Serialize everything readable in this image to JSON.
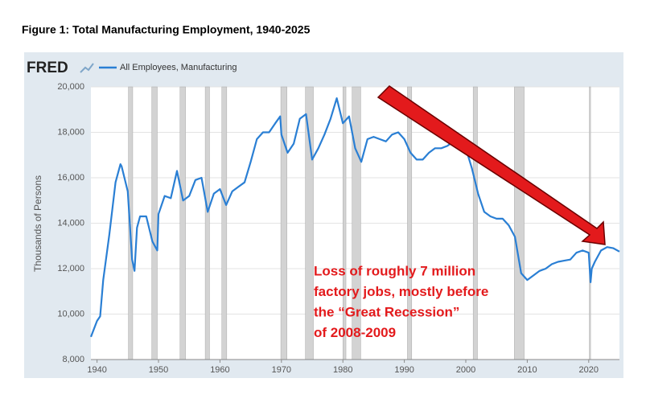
{
  "chart_data": {
    "type": "line",
    "title": "Figure 1: Total Manufacturing Employment, 1940-2025",
    "source": "FRED",
    "y_label": "Thousands of Persons",
    "annotation": [
      "Loss of roughly 7 million",
      "factory jobs, mostly before",
      "the “Great Recession”",
      "of 2008-2009"
    ],
    "x": [
      1939,
      1940,
      1940.5,
      1941,
      1942,
      1943,
      1943.8,
      1944,
      1945,
      1945.7,
      1946.1,
      1946.5,
      1947,
      1948,
      1949,
      1949.8,
      1950,
      1951,
      1952,
      1953,
      1954,
      1955,
      1956,
      1957,
      1958,
      1959,
      1960,
      1961,
      1962,
      1963,
      1964,
      1965,
      1966,
      1967,
      1968,
      1969,
      1969.8,
      1970,
      1971,
      1972,
      1973,
      1974,
      1975,
      1976,
      1977,
      1978,
      1979,
      1980,
      1981,
      1982,
      1983,
      1984,
      1985,
      1986,
      1987,
      1988,
      1989,
      1990,
      1991,
      1992,
      1993,
      1994,
      1995,
      1996,
      1997,
      1998,
      1999,
      2000,
      2001,
      2002,
      2003,
      2004,
      2005,
      2006,
      2007,
      2008,
      2009,
      2010,
      2011,
      2012,
      2013,
      2014,
      2015,
      2016,
      2017,
      2018,
      2019,
      2020,
      2020.3,
      2020.5,
      2021,
      2022,
      2023,
      2024,
      2025
    ],
    "series": [
      {
        "name": "All Employees, Manufacturing",
        "color": "#2a7fd4",
        "values": [
          9000,
          9700,
          9900,
          11500,
          13500,
          15800,
          16600,
          16500,
          15400,
          12400,
          11900,
          13800,
          14300,
          14300,
          13200,
          12800,
          14400,
          15200,
          15100,
          16300,
          15000,
          15200,
          15900,
          16000,
          14500,
          15300,
          15500,
          14800,
          15400,
          15600,
          15800,
          16700,
          17700,
          18000,
          18000,
          18400,
          18700,
          17900,
          17100,
          17500,
          18600,
          18800,
          16800,
          17300,
          17900,
          18600,
          19500,
          18400,
          18700,
          17300,
          16700,
          17700,
          17800,
          17700,
          17600,
          17900,
          18000,
          17700,
          17100,
          16800,
          16800,
          17100,
          17300,
          17300,
          17400,
          17600,
          17300,
          17300,
          16400,
          15300,
          14500,
          14300,
          14200,
          14200,
          13900,
          13400,
          11800,
          11500,
          11700,
          11900,
          12000,
          12200,
          12300,
          12350,
          12400,
          12700,
          12800,
          12700,
          11400,
          12000,
          12300,
          12800,
          12950,
          12900,
          12750
        ]
      }
    ],
    "recessions": [
      [
        1945.1,
        1945.8
      ],
      [
        1948.9,
        1949.8
      ],
      [
        1953.5,
        1954.4
      ],
      [
        1957.6,
        1958.3
      ],
      [
        1960.3,
        1961.1
      ],
      [
        1969.9,
        1970.9
      ],
      [
        1973.9,
        1975.2
      ],
      [
        1980.0,
        1980.5
      ],
      [
        1981.5,
        1982.9
      ],
      [
        1990.5,
        1991.2
      ],
      [
        2001.2,
        2001.9
      ],
      [
        2007.9,
        2009.5
      ],
      [
        2020.1,
        2020.3
      ]
    ],
    "xlim": [
      1939,
      2025
    ],
    "ylim": [
      8000,
      20000
    ],
    "xticks": [
      1940,
      1950,
      1960,
      1970,
      1980,
      1990,
      2000,
      2010,
      2020
    ],
    "yticks": [
      {
        "value": 8000,
        "label": "8,000"
      },
      {
        "value": 10000,
        "label": "10,000"
      },
      {
        "value": 12000,
        "label": "12,000"
      },
      {
        "value": 14000,
        "label": "14,000"
      },
      {
        "value": 16000,
        "label": "16,000"
      },
      {
        "value": 18000,
        "label": "18,000"
      },
      {
        "value": 20000,
        "label": "20,000"
      }
    ],
    "grid": true,
    "recession_color": "#d3d3d3",
    "annotation_color": "#e31a1c"
  }
}
